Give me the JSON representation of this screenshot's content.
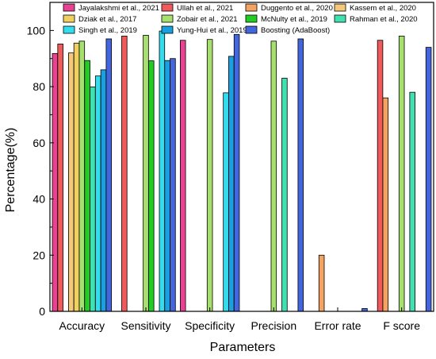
{
  "chart_data": {
    "type": "bar",
    "xlabel": "Parameters",
    "ylabel": "Percentage(%)",
    "ylim": [
      0,
      110
    ],
    "yticks": [
      0,
      20,
      40,
      60,
      80,
      100
    ],
    "grid": false,
    "legend_position": "top",
    "categories": [
      "Accuracy",
      "Sensitivity",
      "Specificity",
      "Precision",
      "Error rate",
      "F score"
    ],
    "series": [
      {
        "name": "Jayalakshmi et al., 2021",
        "color": "#e84393",
        "values": [
          91.8,
          null,
          96.5,
          null,
          null,
          null
        ]
      },
      {
        "name": "Ullah et al., 2021",
        "color": "#f05a5a",
        "values": [
          95.2,
          98.0,
          null,
          null,
          null,
          96.5
        ]
      },
      {
        "name": "Duggento et al., 2020",
        "color": "#f4a460",
        "values": [
          null,
          null,
          null,
          null,
          20.0,
          76.0
        ]
      },
      {
        "name": "Kassem et al., 2020",
        "color": "#f5c97a",
        "values": [
          92.0,
          null,
          null,
          null,
          null,
          null
        ]
      },
      {
        "name": "Dziak et al., 2017",
        "color": "#f0d060",
        "values": [
          95.5,
          null,
          null,
          null,
          null,
          null
        ]
      },
      {
        "name": "Zobair et al., 2021",
        "color": "#a8e070",
        "values": [
          96.2,
          98.3,
          96.8,
          96.2,
          null,
          98.0
        ]
      },
      {
        "name": "McNulty et al., 2019",
        "color": "#22cc22",
        "values": [
          89.3,
          89.2,
          null,
          null,
          null,
          null
        ]
      },
      {
        "name": "Rahman et al., 2020",
        "color": "#40e0b0",
        "values": [
          79.9,
          null,
          null,
          83.0,
          null,
          78.0
        ]
      },
      {
        "name": "Singh et al., 2019",
        "color": "#33ddee",
        "values": [
          83.8,
          99.8,
          77.8,
          null,
          null,
          null
        ]
      },
      {
        "name": "Yung-Hui et al., 2019",
        "color": "#1aa0e0",
        "values": [
          86.0,
          89.3,
          90.8,
          null,
          null,
          null
        ]
      },
      {
        "name": "Boosting (AdaBoost)",
        "color": "#4466dd",
        "values": [
          97.0,
          90.0,
          98.6,
          97.0,
          1.0,
          94.0
        ]
      }
    ]
  }
}
